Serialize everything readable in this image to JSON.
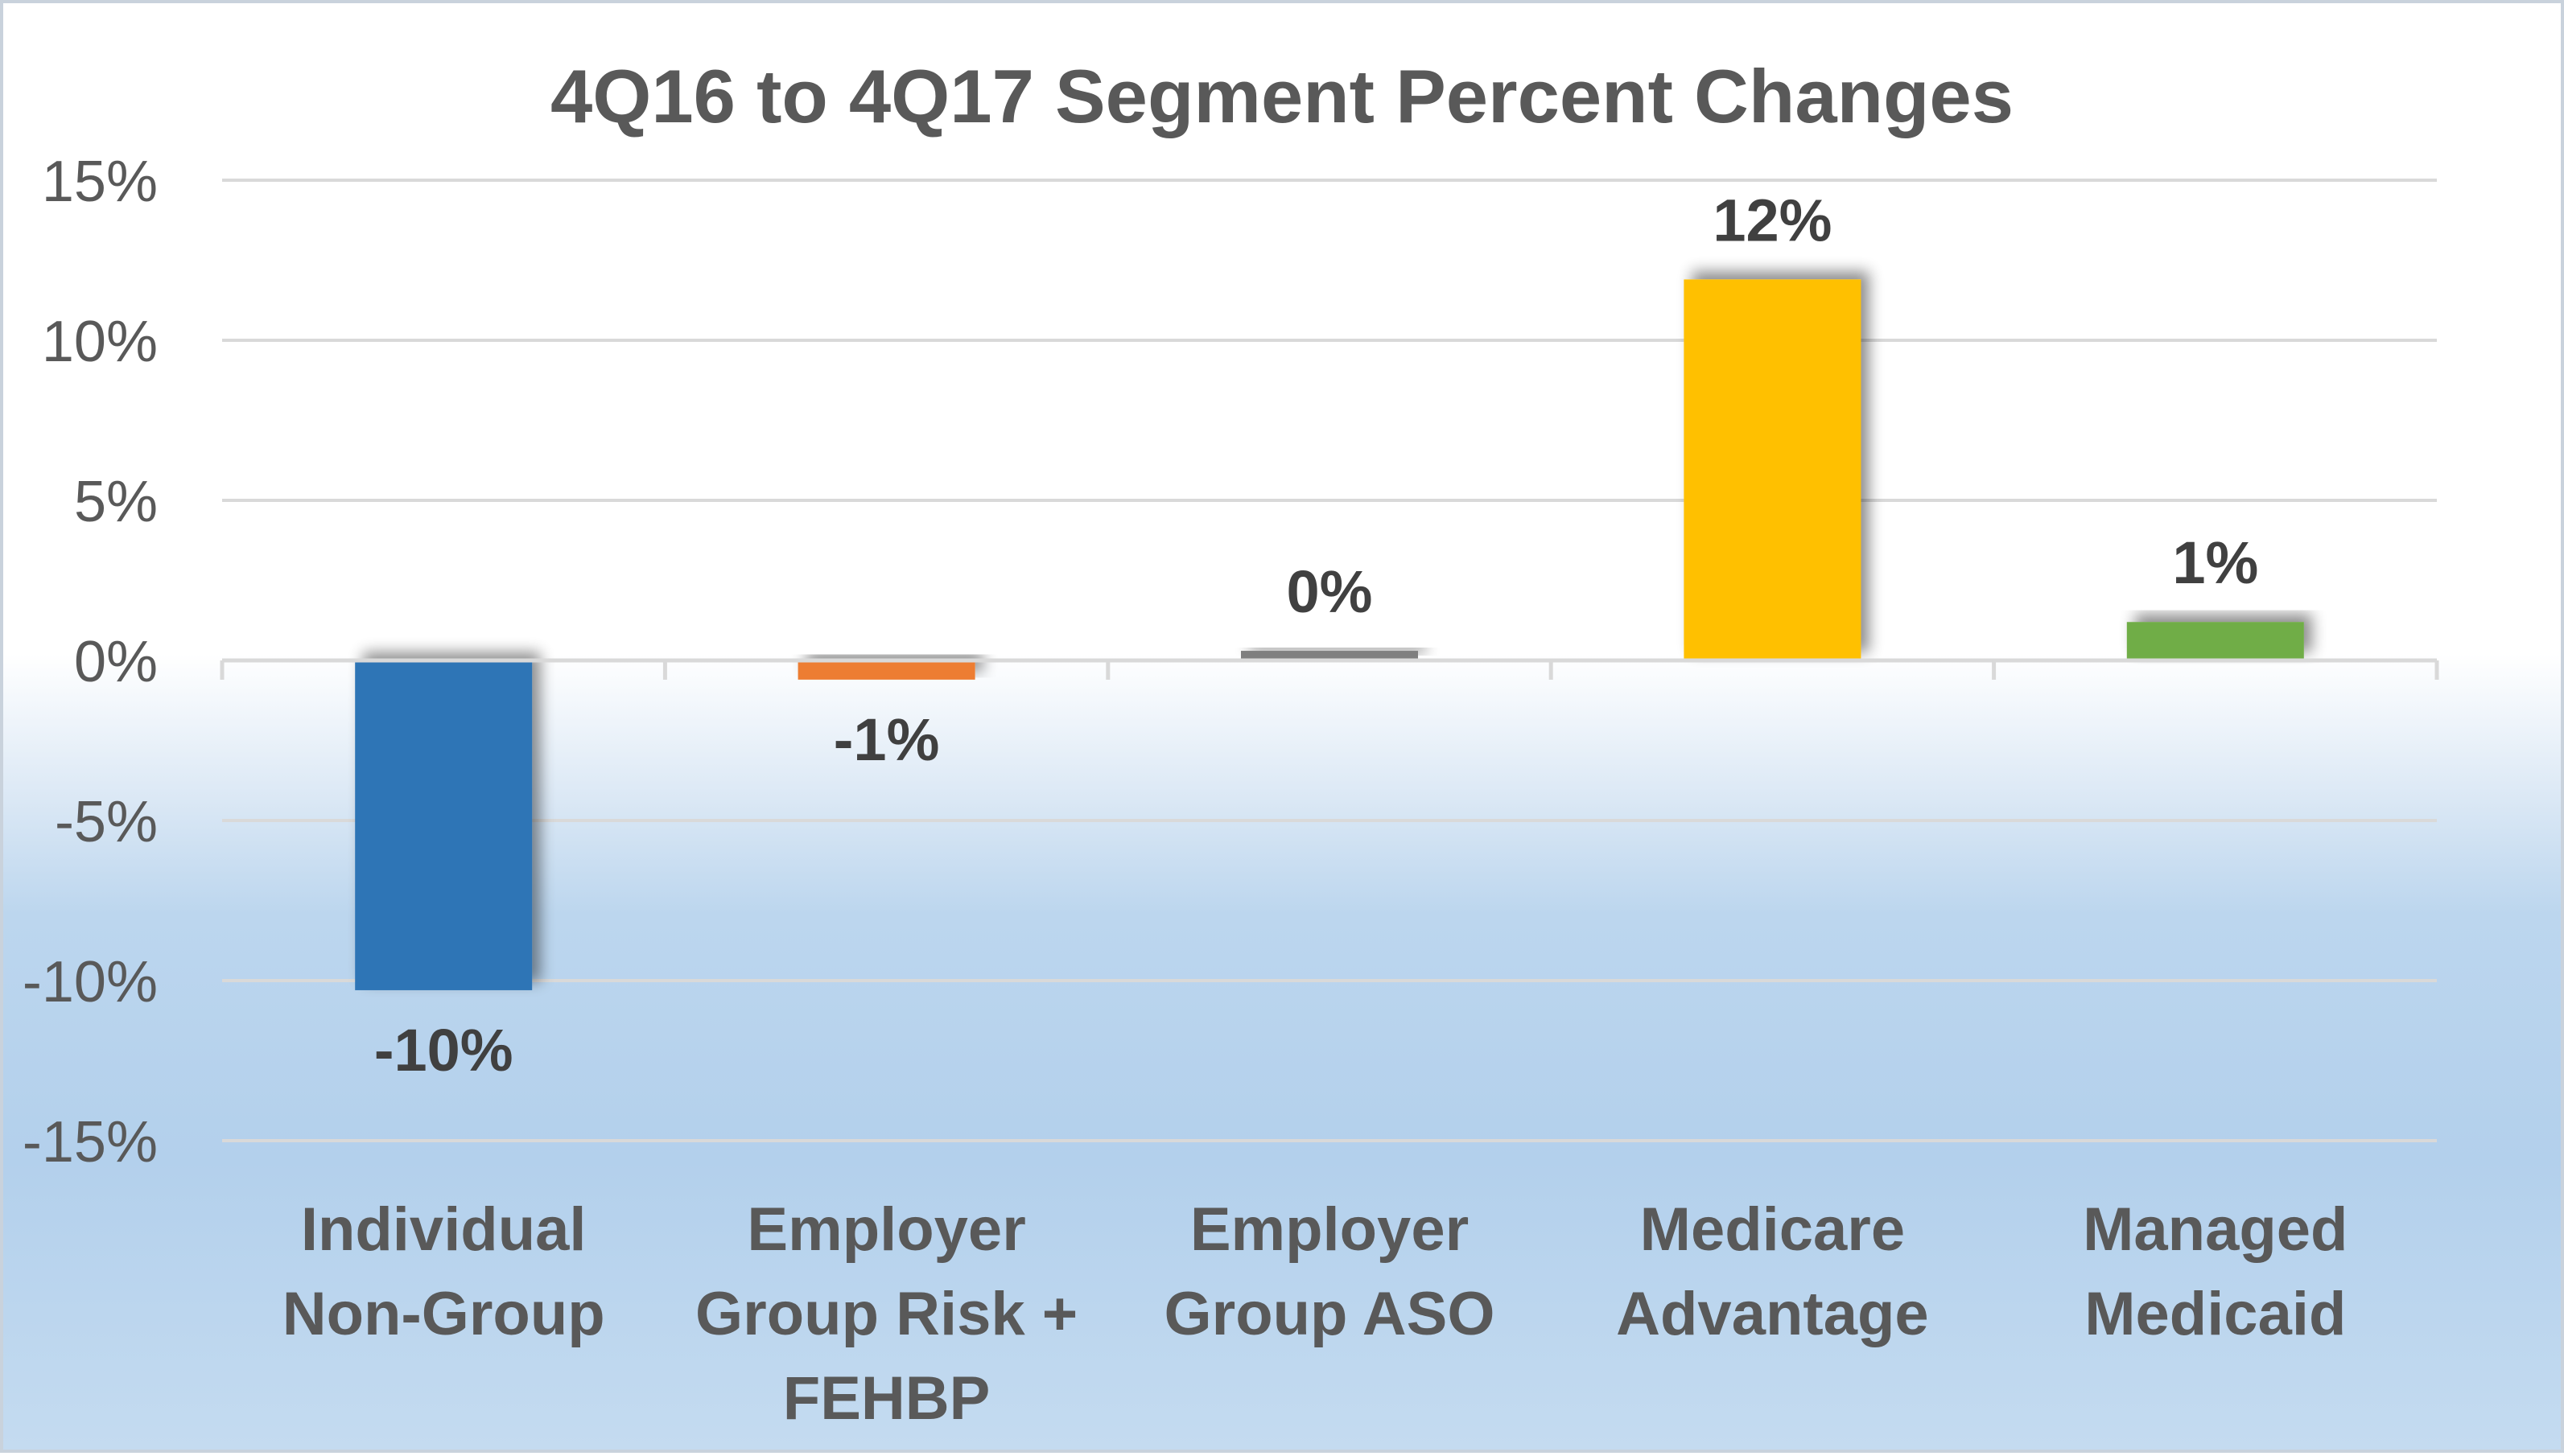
{
  "chart_data": {
    "type": "bar",
    "title": "4Q16 to 4Q17 Segment Percent Changes",
    "xlabel": "",
    "ylabel": "",
    "ylim": [
      -15,
      15
    ],
    "yticks": [
      15,
      10,
      5,
      0,
      -5,
      -10,
      -15
    ],
    "ytick_labels": [
      "15%",
      "10%",
      "5%",
      "0%",
      "-5%",
      "-10%",
      "-15%"
    ],
    "grid": true,
    "legend": "none",
    "categories": [
      [
        "Individual",
        "Non-Group"
      ],
      [
        "Employer",
        "Group Risk +",
        "FEHBP"
      ],
      [
        "Employer",
        "Group ASO"
      ],
      [
        "Medicare",
        "Advantage"
      ],
      [
        "Managed",
        "Medicaid"
      ]
    ],
    "values": [
      -10.3,
      -0.6,
      0.3,
      11.9,
      1.2
    ],
    "data_labels": [
      "-10%",
      "-1%",
      "0%",
      "12%",
      "1%"
    ],
    "colors": [
      "#2e75b6",
      "#ed7d31",
      "#7f7f7f",
      "#ffc000",
      "#70ad47"
    ]
  }
}
